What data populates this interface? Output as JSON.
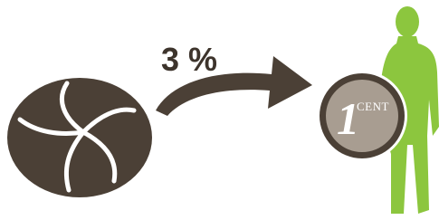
{
  "label": "3 %",
  "coin": {
    "number": "1",
    "unit": "CENT"
  }
}
